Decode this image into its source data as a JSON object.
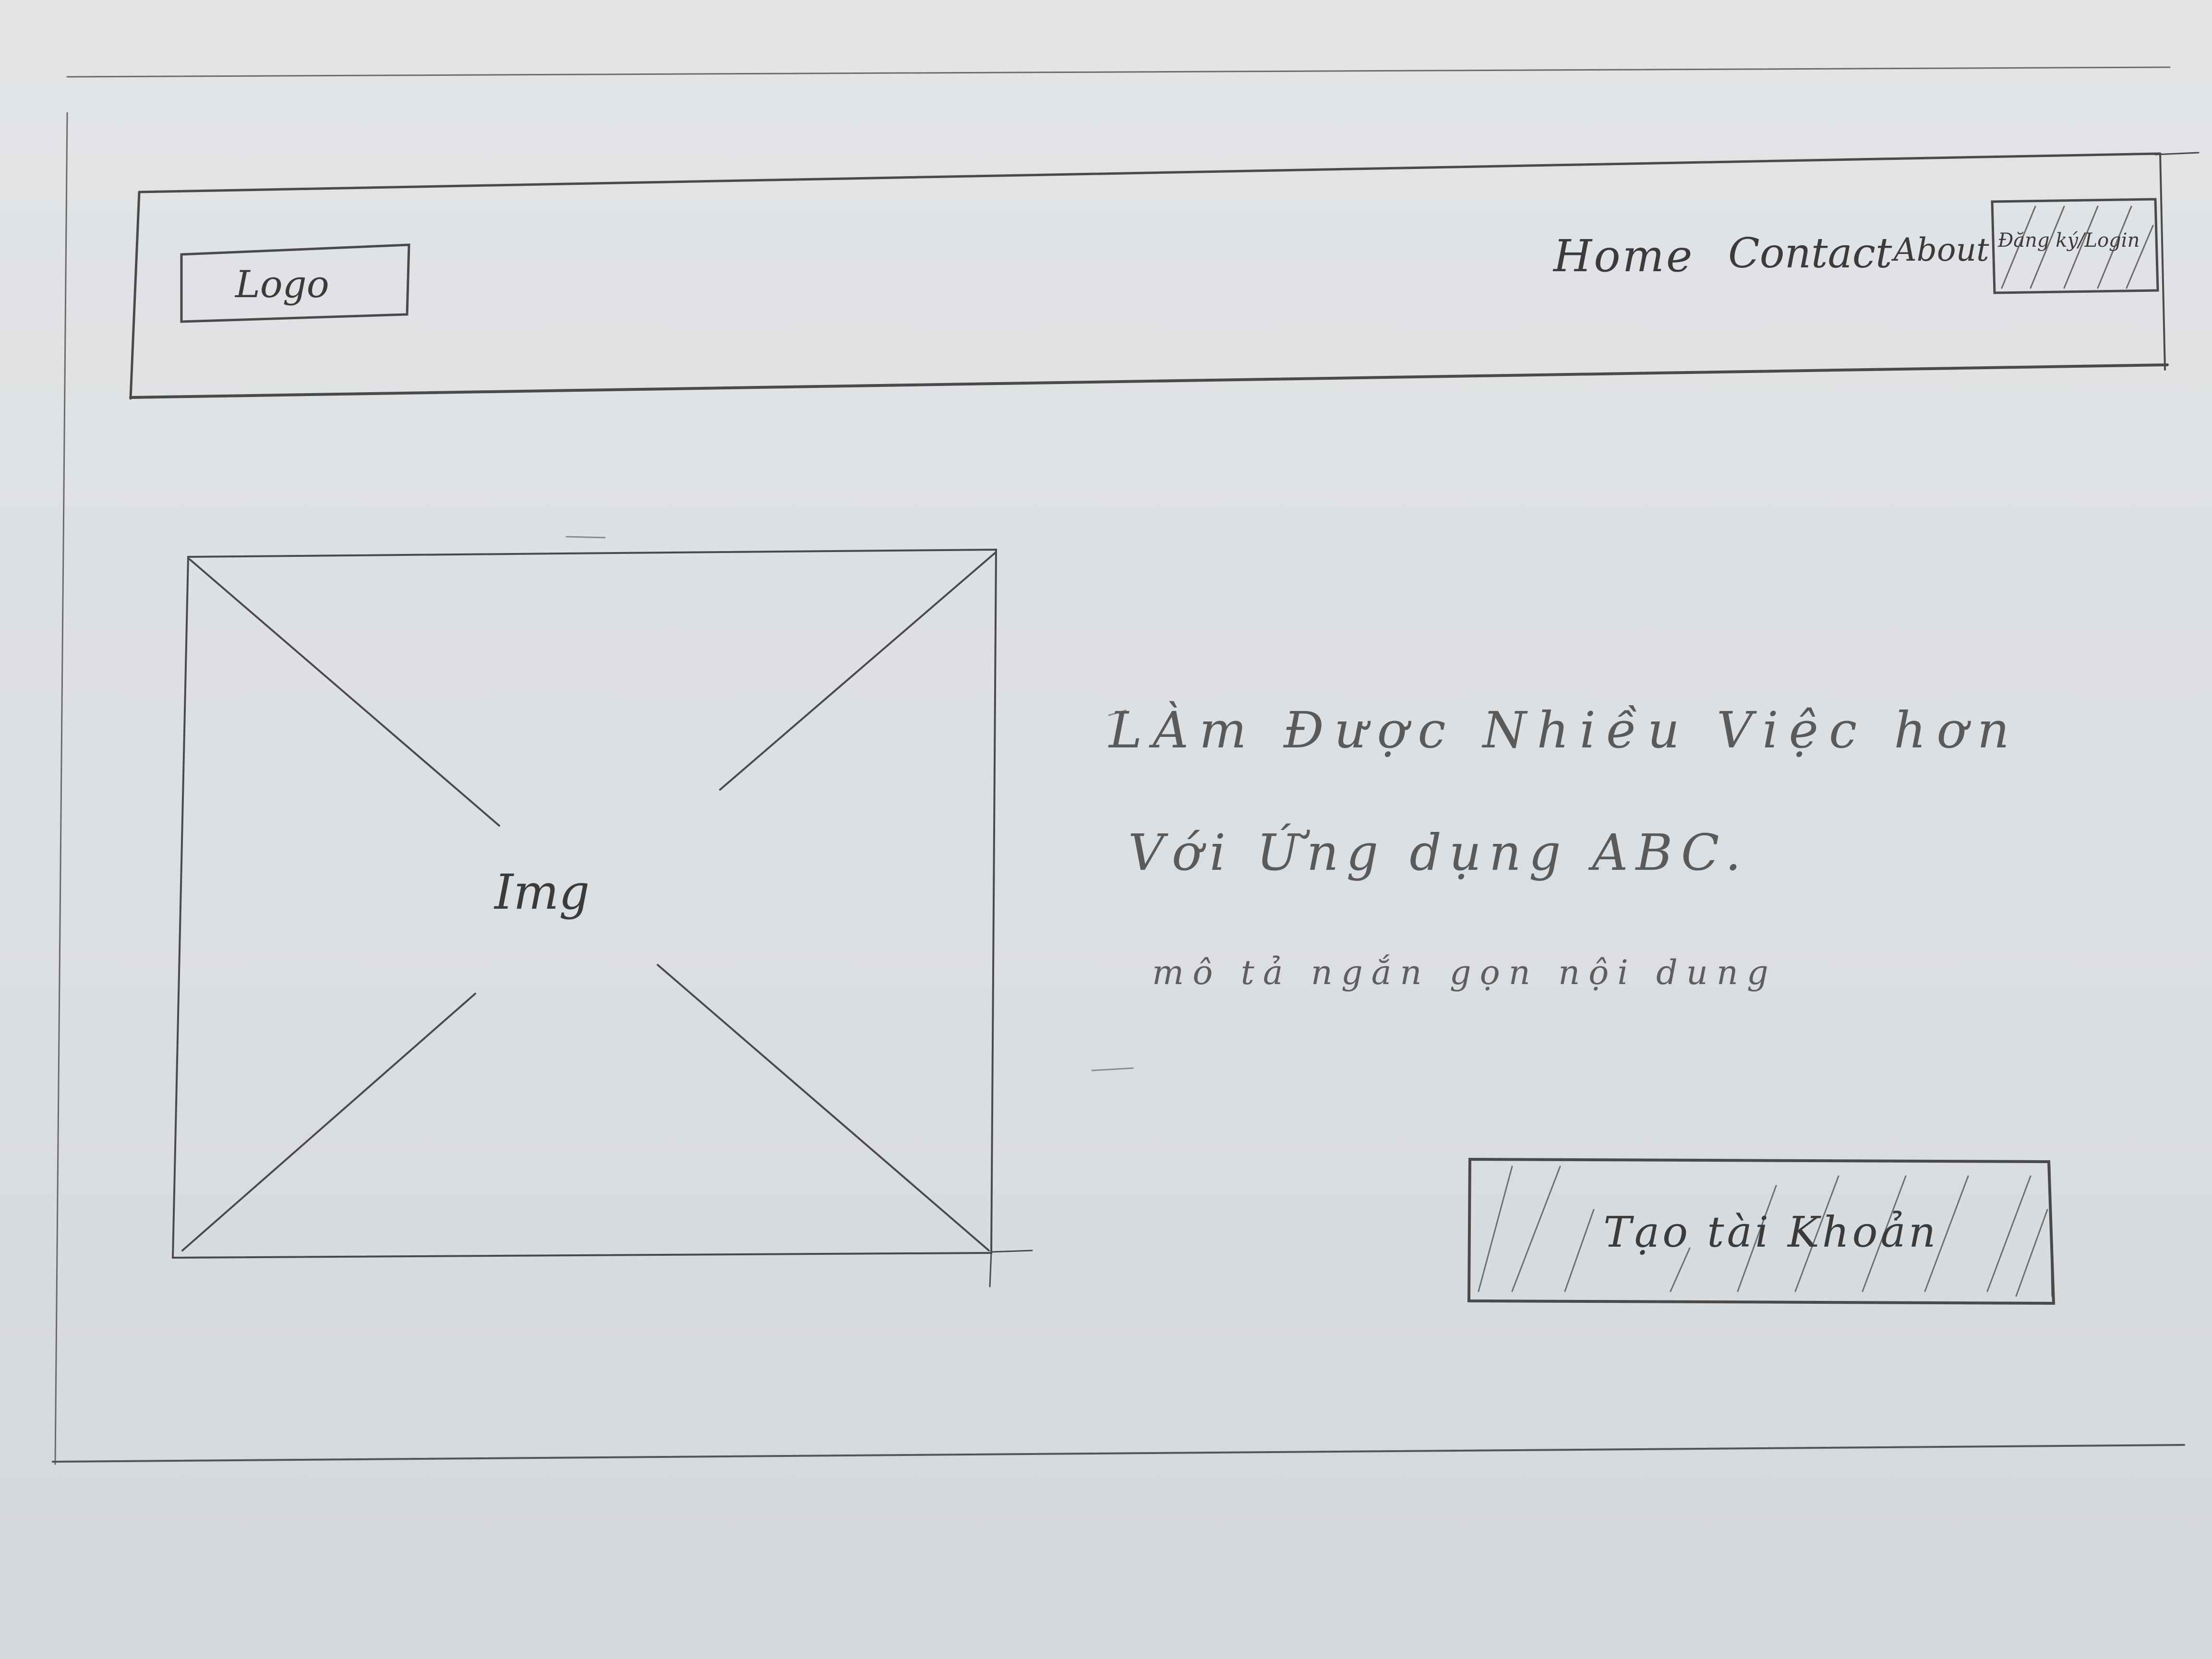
{
  "header": {
    "logo_label": "Logo",
    "nav": {
      "home": "Home",
      "contact": "Contact",
      "about": "About"
    },
    "signup_label": "Đăng ký/Login"
  },
  "main": {
    "image_placeholder_label": "Img",
    "headline_line1": "LÀm Được Nhiều Việc hơn",
    "headline_line2": "Với Ứng dụng ABC.",
    "description": "mô tả ngắn gọn nội dung",
    "cta_label": "Tạo tài Khoản"
  }
}
